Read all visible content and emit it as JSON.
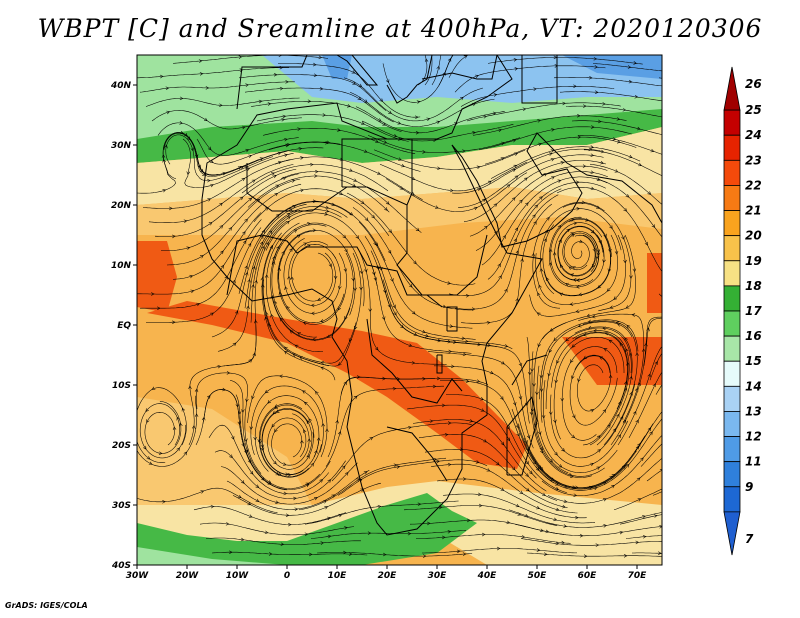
{
  "title": "WBPT [C] and Sreamline at 400hPa, VT: 2020120306",
  "credit": "GrADS: IGES/COLA",
  "map": {
    "lon_range": [
      -30,
      75
    ],
    "lat_range": [
      -40,
      45
    ],
    "lon_ticks": [
      {
        "lon": -30,
        "label": "30W"
      },
      {
        "lon": -20,
        "label": "20W"
      },
      {
        "lon": -10,
        "label": "10W"
      },
      {
        "lon": 0,
        "label": "0"
      },
      {
        "lon": 10,
        "label": "10E"
      },
      {
        "lon": 20,
        "label": "20E"
      },
      {
        "lon": 30,
        "label": "30E"
      },
      {
        "lon": 40,
        "label": "40E"
      },
      {
        "lon": 50,
        "label": "50E"
      },
      {
        "lon": 60,
        "label": "60E"
      },
      {
        "lon": 70,
        "label": "70E"
      }
    ],
    "lat_ticks": [
      {
        "lat": 40,
        "label": "40N"
      },
      {
        "lat": 30,
        "label": "30N"
      },
      {
        "lat": 20,
        "label": "20N"
      },
      {
        "lat": 10,
        "label": "10N"
      },
      {
        "lat": 0,
        "label": "EQ"
      },
      {
        "lat": -10,
        "label": "10S"
      },
      {
        "lat": -20,
        "label": "20S"
      },
      {
        "lat": -30,
        "label": "30S"
      },
      {
        "lat": -40,
        "label": "40S"
      }
    ]
  },
  "colorbar": {
    "levels": [
      {
        "label": "26",
        "color": "#a00000"
      },
      {
        "label": "25",
        "color": "#c40000"
      },
      {
        "label": "24",
        "color": "#e62300"
      },
      {
        "label": "23",
        "color": "#f44a0b"
      },
      {
        "label": "22",
        "color": "#f77a14"
      },
      {
        "label": "21",
        "color": "#f9a31e"
      },
      {
        "label": "20",
        "color": "#f8c24a"
      },
      {
        "label": "19",
        "color": "#f7e184"
      },
      {
        "label": "18",
        "color": "#34b034"
      },
      {
        "label": "17",
        "color": "#5fcf5f"
      },
      {
        "label": "16",
        "color": "#a8e6a8"
      },
      {
        "label": "15",
        "color": "#e6fbfb"
      },
      {
        "label": "14",
        "color": "#a9d2f5"
      },
      {
        "label": "13",
        "color": "#7ab8ef"
      },
      {
        "label": "12",
        "color": "#4f9be6"
      },
      {
        "label": "11",
        "color": "#2f80dc"
      },
      {
        "label": "9",
        "color": "#1d68d4"
      },
      {
        "label": "7",
        "color": "#1f5fd0"
      }
    ]
  },
  "field_colors": {
    "hot": "#f05a14",
    "warm": "#f7a23a",
    "mild": "#f9c870",
    "pale": "#f8e4a4",
    "green": "#46b946",
    "lightgreen": "#9fe39f",
    "cold": "#8cc3f0",
    "colder": "#5a9fe4"
  }
}
